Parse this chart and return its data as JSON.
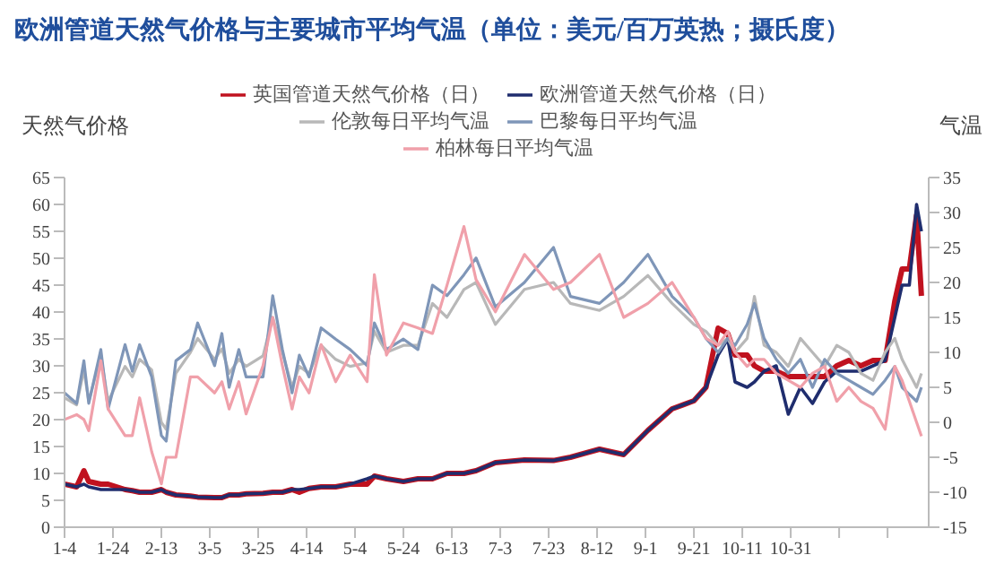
{
  "chart_data": {
    "type": "line",
    "title": "欧洲管道天然气价格与主要城市平均气温（单位：美元/百万英热；摄氏度）",
    "ylabel": "天然气价格",
    "y2label": "气温",
    "legend": "top",
    "marker": "none",
    "line_style": "solid",
    "x": [
      "--01-04",
      "--01-09",
      "--01-12",
      "--01-14",
      "--01-19",
      "--01-22",
      "--01-29",
      "--02-01",
      "--02-04",
      "--02-09",
      "--02-13",
      "--02-15",
      "--02-19",
      "--02-25",
      "--02-28",
      "--03-07",
      "--03-10",
      "--03-13",
      "--03-17",
      "--03-20",
      "--03-27",
      "--03-31",
      "--04-04",
      "--04-08",
      "--04-11",
      "--04-15",
      "--04-20",
      "--04-26",
      "--05-02",
      "--05-09",
      "--05-12",
      "--05-17",
      "--05-24",
      "--05-30",
      "--06-05",
      "--06-11",
      "--06-18",
      "--06-23",
      "--07-01",
      "--07-13",
      "--07-25",
      "--08-01",
      "--08-13",
      "--08-23",
      "--09-02",
      "--09-12",
      "--09-21",
      "--09-26",
      "--10-01",
      "--10-05",
      "--10-08",
      "--10-13",
      "--10-16",
      "--10-20",
      "--10-25",
      "--10-30",
      "--11-04",
      "--11-09",
      "--11-14",
      "--11-19",
      "--11-24",
      "--11-29",
      "--12-04",
      "--12-09",
      "--12-13",
      "--12-16",
      "--12-19",
      "--12-22",
      "--12-24"
    ],
    "xlim": [
      "--01-04",
      "--12-27"
    ],
    "xticks": [
      {
        "value": "--01-04",
        "label": "1-4"
      },
      {
        "value": "--01-24",
        "label": "1-24"
      },
      {
        "value": "--02-13",
        "label": "2-13"
      },
      {
        "value": "--03-05",
        "label": "3-5"
      },
      {
        "value": "--03-25",
        "label": "3-25"
      },
      {
        "value": "--04-14",
        "label": "4-14"
      },
      {
        "value": "--05-04",
        "label": "5-4"
      },
      {
        "value": "--05-24",
        "label": "5-24"
      },
      {
        "value": "--06-13",
        "label": "6-13"
      },
      {
        "value": "--07-03",
        "label": "7-3"
      },
      {
        "value": "--07-23",
        "label": "7-23"
      },
      {
        "value": "--08-12",
        "label": "8-12"
      },
      {
        "value": "--09-01",
        "label": "9-1"
      },
      {
        "value": "--09-21",
        "label": "9-21"
      },
      {
        "value": "--10-11",
        "label": "10-11"
      },
      {
        "value": "--10-31",
        "label": "10-31"
      },
      {
        "value": "--11-20",
        "label": null
      },
      {
        "value": "--12-10",
        "label": null
      }
    ],
    "ylim": [
      0,
      65
    ],
    "yticks": [
      0,
      5,
      10,
      15,
      20,
      25,
      30,
      35,
      40,
      45,
      50,
      55,
      60,
      65
    ],
    "y2lim": [
      -15,
      35
    ],
    "y2ticks": [
      -15,
      -10,
      -5,
      0,
      5,
      10,
      15,
      20,
      25,
      30,
      35
    ],
    "series": [
      {
        "name": "英国管道天然气价格（日）",
        "color": "#c0121f",
        "values": [
          8,
          7.5,
          10.5,
          8.5,
          8,
          8,
          7,
          6.8,
          6.5,
          6.5,
          7,
          6.5,
          6,
          5.8,
          5.6,
          5.5,
          5.5,
          6,
          6,
          6.2,
          6.3,
          6.5,
          6.5,
          7,
          6.5,
          7.2,
          7.5,
          7.5,
          8,
          8,
          9.5,
          9,
          8.5,
          9,
          9,
          10,
          10,
          10.5,
          12,
          12.5,
          12.4,
          13,
          14.5,
          13.5,
          18,
          22,
          23.5,
          26,
          37,
          36,
          32,
          32,
          30,
          29,
          29,
          28,
          28,
          28,
          28,
          30,
          31,
          30,
          31,
          31,
          42,
          48,
          48,
          58,
          43
        ]
      },
      {
        "name": "欧洲管道天然气价格（日）",
        "color": "#1f2d6e",
        "values": [
          8,
          7.5,
          8,
          7.5,
          7,
          7,
          7,
          6.8,
          6.5,
          6.5,
          7,
          6.5,
          6,
          5.8,
          5.6,
          5.5,
          5.5,
          6,
          6,
          6.2,
          6.3,
          6.5,
          6.5,
          7,
          7,
          7.2,
          7.5,
          7.5,
          8,
          9,
          9.5,
          9,
          8.5,
          9,
          9,
          10,
          10,
          10.5,
          12,
          12.5,
          12.4,
          13,
          14.5,
          13.5,
          18,
          22,
          23.5,
          26,
          32,
          35,
          27,
          26,
          27,
          29,
          30,
          21,
          26,
          23,
          27,
          29,
          29,
          29,
          30,
          31,
          39,
          45,
          45,
          60,
          55
        ]
      },
      {
        "name": "伦敦每日平均气温",
        "color": "#b8b8b8",
        "axis": "y2",
        "values": [
          3.5,
          2.5,
          7.5,
          3,
          9.5,
          3,
          8,
          6.5,
          9,
          7.5,
          0,
          -1,
          7,
          10,
          12,
          9,
          10.5,
          7,
          9,
          8,
          9.5,
          15,
          10,
          5,
          8,
          7,
          11,
          9,
          8,
          8.5,
          13,
          10,
          11,
          11,
          17,
          15,
          19,
          20,
          14,
          19,
          20,
          17,
          16,
          18,
          21,
          17,
          14,
          13,
          11,
          12,
          10,
          12,
          18,
          11,
          10,
          8,
          12,
          10,
          8,
          11,
          10,
          7,
          6,
          10,
          12,
          9,
          7,
          5,
          7
        ]
      },
      {
        "name": "巴黎每日平均气温",
        "color": "#7f96b8",
        "axis": "y2",
        "values": [
          4.2,
          2.7,
          8.8,
          2.7,
          10.4,
          1.9,
          11.1,
          7.3,
          11.1,
          6.5,
          -1.9,
          -2.7,
          8.8,
          10.4,
          14.2,
          8.1,
          12.7,
          5,
          10.4,
          6.5,
          6.5,
          18.1,
          10.4,
          4.2,
          9.6,
          6.5,
          13.5,
          11.9,
          10.4,
          8.1,
          14.2,
          10.4,
          11.9,
          10.4,
          19.6,
          18.1,
          21.1,
          23.5,
          16.5,
          20,
          25,
          18,
          17,
          20,
          24,
          18,
          15,
          12,
          10,
          12,
          11,
          14,
          17,
          12,
          9,
          7,
          9,
          5,
          9,
          7,
          6,
          5,
          4,
          6,
          8,
          5,
          4,
          3,
          5
        ]
      },
      {
        "name": "柏林每日平均气温",
        "color": "#f0a0aa",
        "axis": "y2",
        "values": [
          0.4,
          1.1,
          0.4,
          -1.2,
          8.8,
          1.9,
          -1.9,
          -1.9,
          3.5,
          -4.2,
          -8.8,
          -5,
          -5,
          6.5,
          6.5,
          4.2,
          5.8,
          1.9,
          5.8,
          1.2,
          8.1,
          15,
          8.1,
          1.9,
          6.5,
          4.2,
          11.1,
          5.8,
          9.6,
          5.8,
          21.1,
          9.6,
          14.2,
          13.5,
          12.7,
          19.6,
          28,
          20.4,
          15.8,
          24,
          19,
          20,
          24,
          15,
          17,
          20,
          15,
          12,
          11,
          13,
          10,
          8,
          9,
          9,
          7,
          6,
          5,
          7,
          8,
          3,
          5,
          3,
          2,
          -1,
          8,
          6,
          3,
          0,
          -2
        ]
      }
    ]
  }
}
